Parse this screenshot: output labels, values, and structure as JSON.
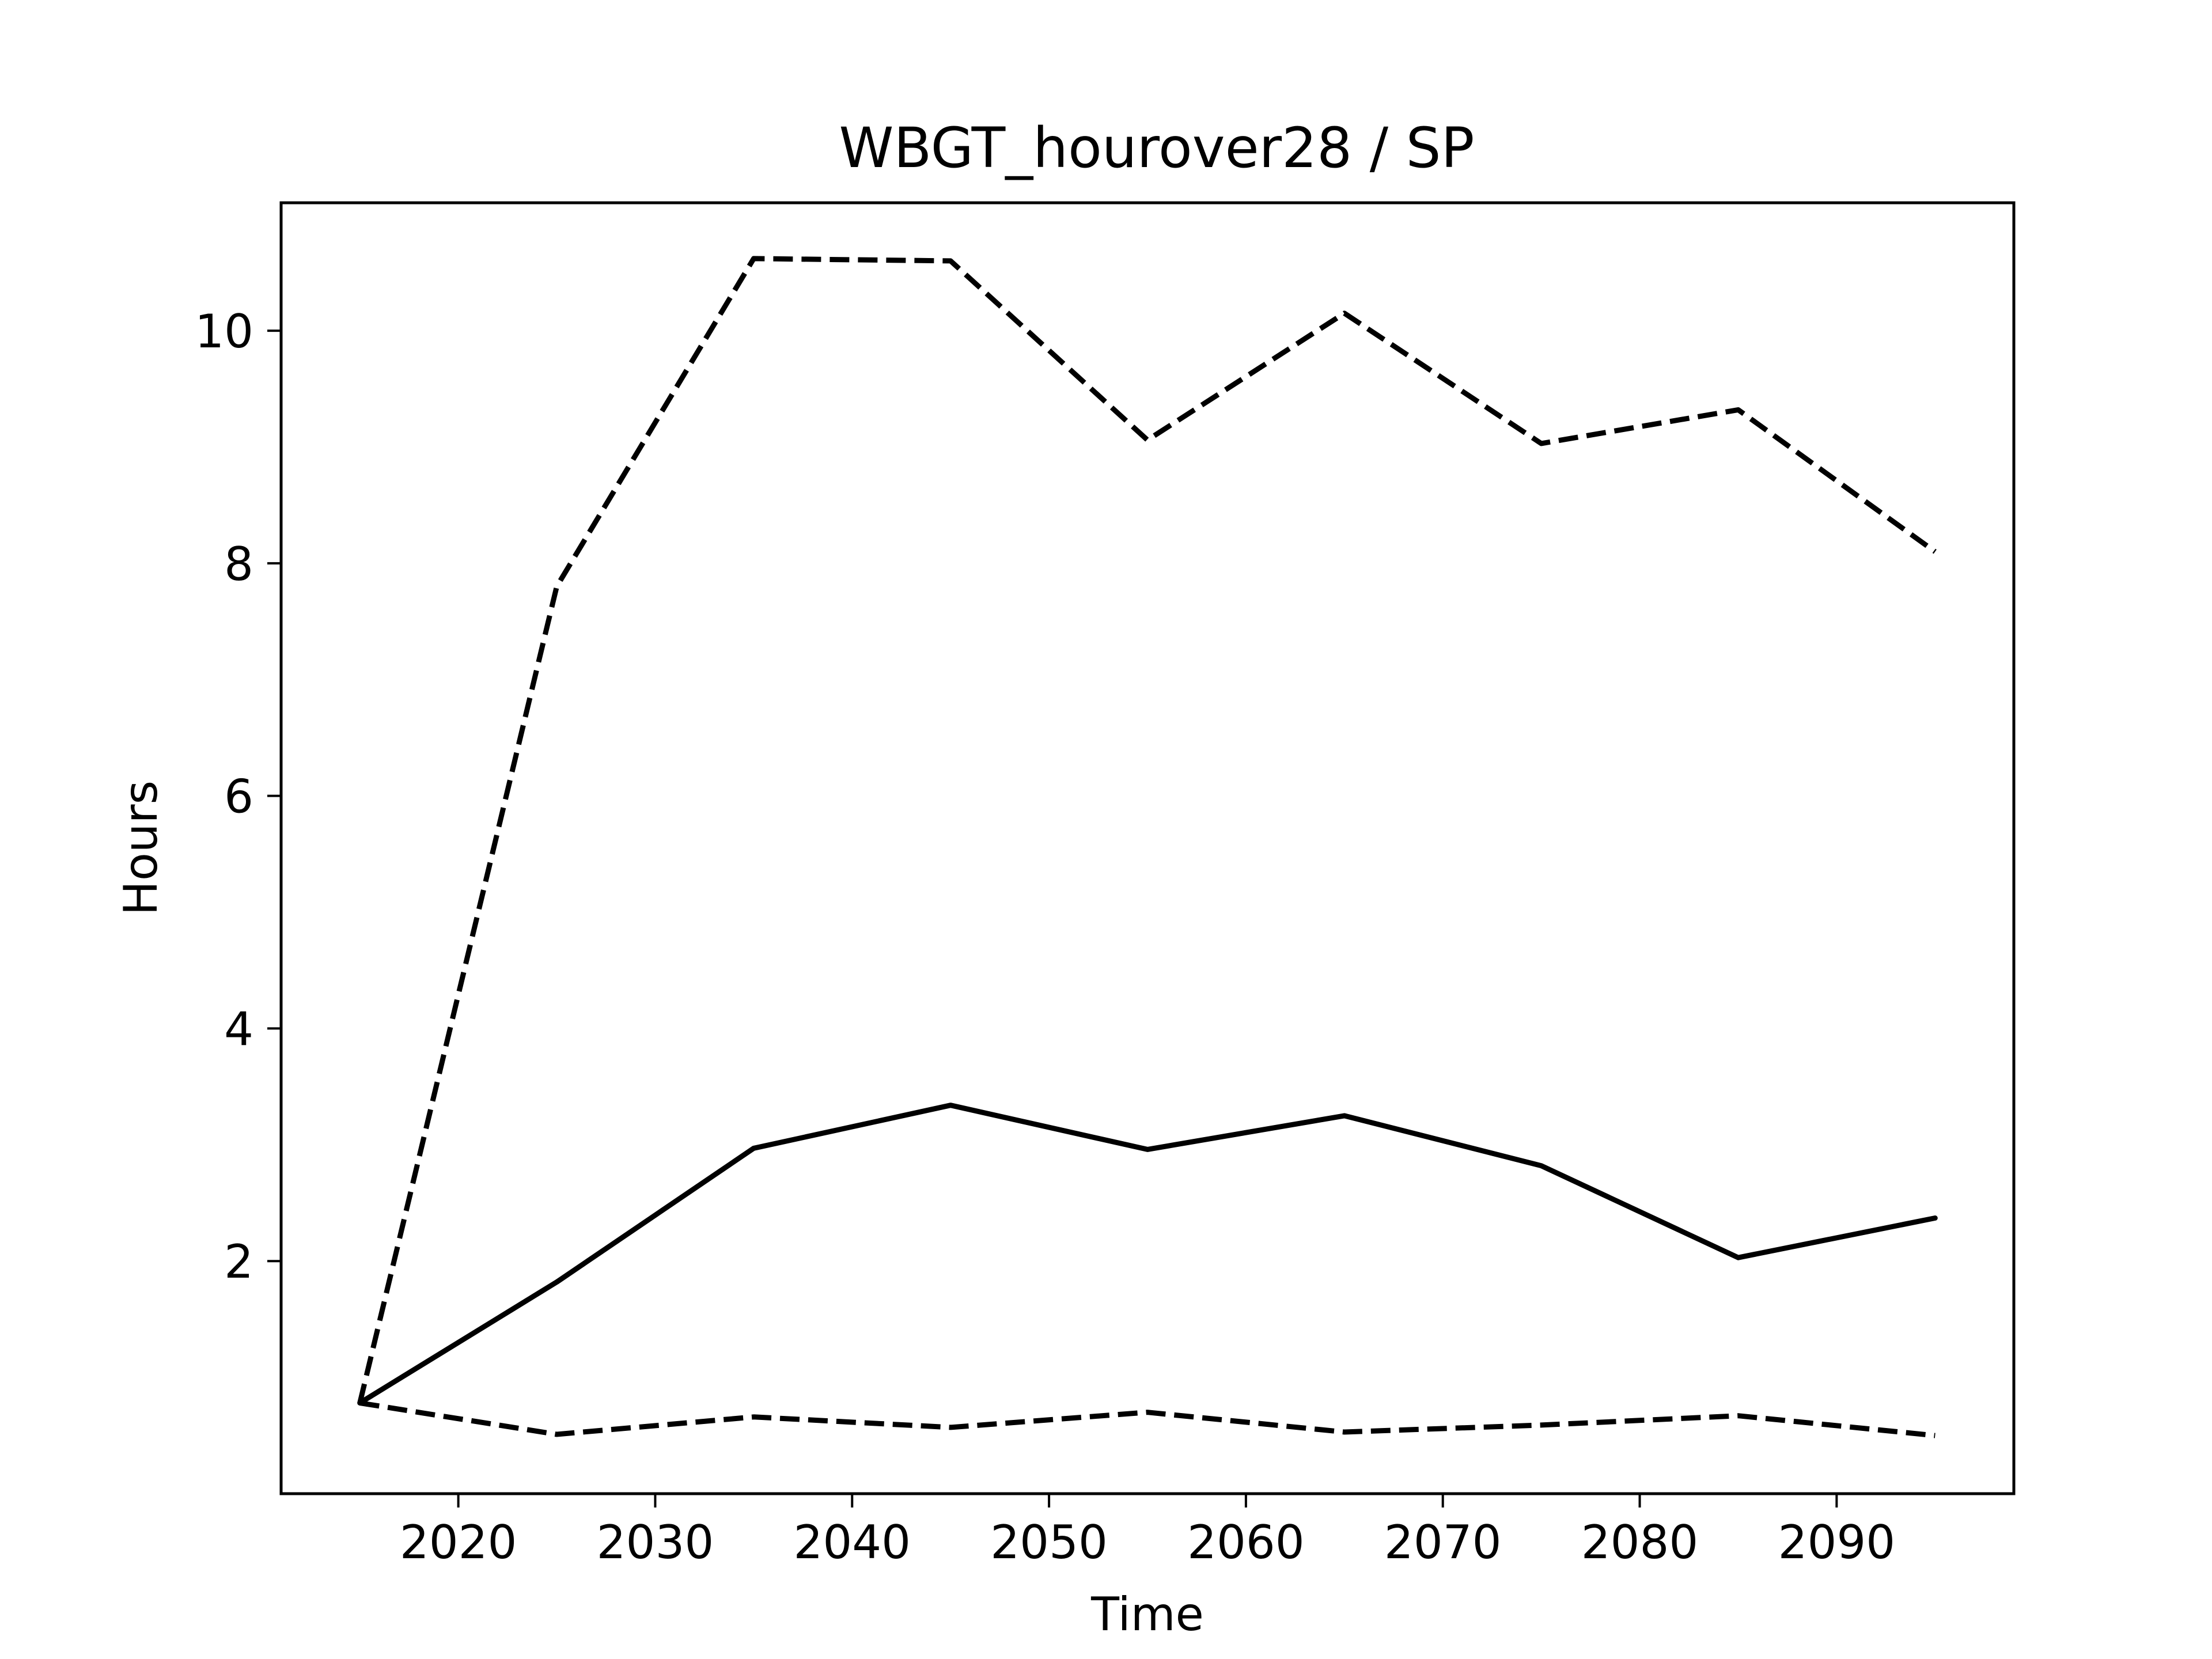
{
  "chart_data": {
    "type": "line",
    "title": "WBGT_hourover28 / SP",
    "xlabel": "Time",
    "ylabel": "Hours",
    "xlim": [
      2011,
      2099
    ],
    "ylim": [
      0.0,
      11.1
    ],
    "xticks": [
      2020,
      2030,
      2040,
      2050,
      2060,
      2070,
      2080,
      2090
    ],
    "yticks": [
      2,
      4,
      6,
      8,
      10
    ],
    "grid": false,
    "line_color": "#000000",
    "x": [
      2015,
      2025,
      2035,
      2045,
      2055,
      2065,
      2075,
      2085,
      2095
    ],
    "series": [
      {
        "line_style": "solid",
        "values": [
          0.78,
          1.82,
          2.97,
          3.34,
          2.96,
          3.25,
          2.82,
          2.03,
          2.37
        ]
      },
      {
        "line_style": "dashed",
        "values": [
          0.78,
          7.8,
          10.62,
          10.6,
          9.06,
          10.15,
          9.03,
          9.32,
          8.1
        ]
      },
      {
        "line_style": "dashed",
        "values": [
          0.78,
          0.51,
          0.66,
          0.57,
          0.7,
          0.53,
          0.59,
          0.67,
          0.5
        ]
      }
    ]
  }
}
